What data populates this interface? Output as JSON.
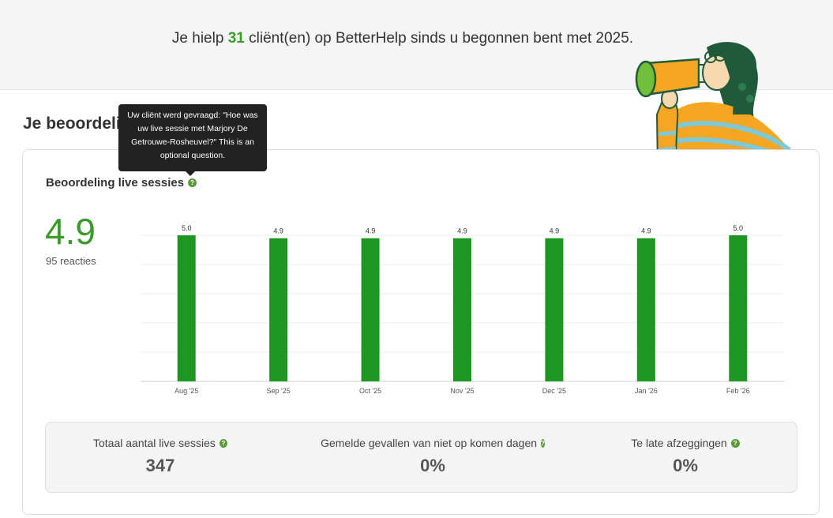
{
  "banner": {
    "prefix": "Je hielp ",
    "count": "31",
    "suffix": " cliënt(en) op BetterHelp sinds u begonnen bent met 2025."
  },
  "section_title": "Je beoordeli",
  "tooltip": {
    "text": "Uw cliënt werd gevraagd: \"Hoe was uw live sessie met Marjory De Getrouwe-Rosheuvel?\" This is an optional question."
  },
  "chart_card": {
    "title": "Beoordeling live sessies",
    "rating": "4.9",
    "responses": "95 reacties"
  },
  "chart_data": {
    "type": "bar",
    "categories": [
      "Aug '25",
      "Sep '25",
      "Oct '25",
      "Nov '25",
      "Dec '25",
      "Jan '26",
      "Feb '26"
    ],
    "values": [
      5.0,
      4.9,
      4.9,
      4.9,
      4.9,
      4.9,
      5.0
    ],
    "data_labels": [
      "5.0",
      "4.9",
      "4.9",
      "4.9",
      "4.9",
      "4.9",
      "5.0"
    ],
    "ylim": [
      0,
      5
    ],
    "grid": true,
    "bar_color": "#1e9622"
  },
  "stats": [
    {
      "label": "Totaal aantal live sessies",
      "value": "347"
    },
    {
      "label": "Gemelde gevallen van niet op komen dagen",
      "value": "0%"
    },
    {
      "label": "Te late afzeggingen",
      "value": "0%"
    }
  ],
  "colors": {
    "accent": "#3a9a2a",
    "bar": "#1e9622",
    "tooltip_bg": "#222222"
  }
}
